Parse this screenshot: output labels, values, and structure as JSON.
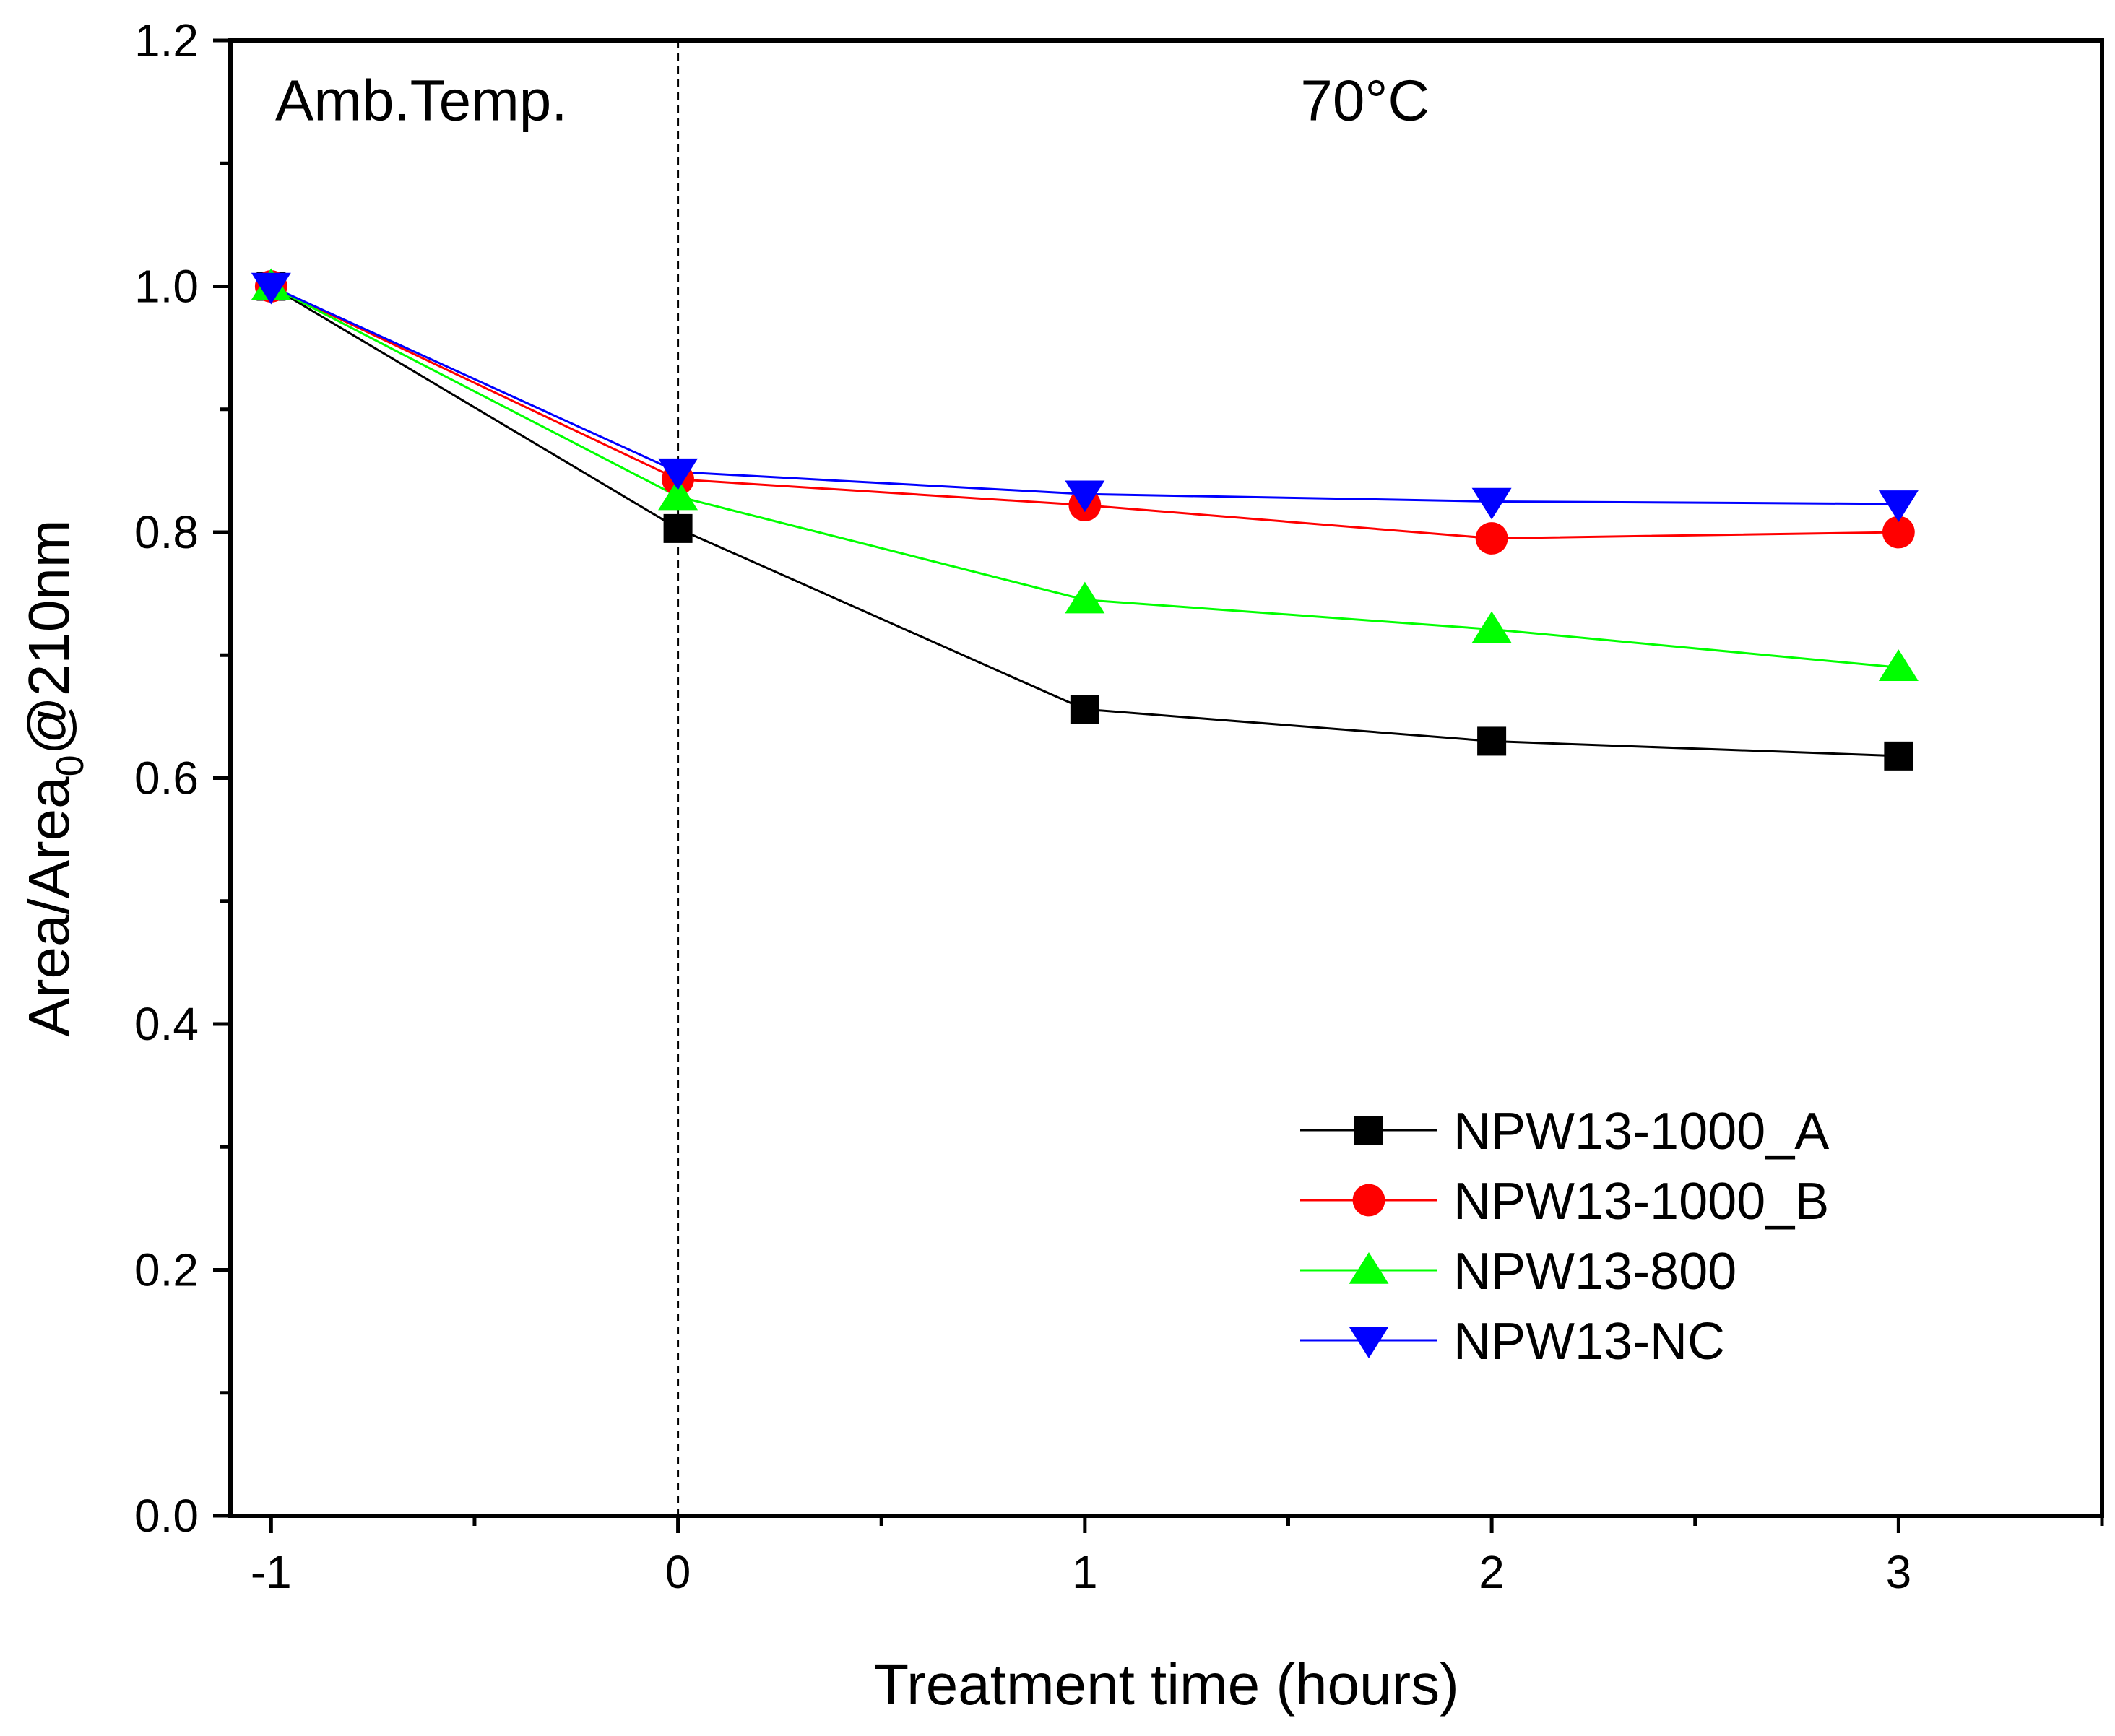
{
  "chart_data": {
    "type": "line",
    "title": "",
    "xlabel": "Treatment time (hours)",
    "ylabel": {
      "main": "Area/Area",
      "subscript": "0",
      "suffix": "@210nm"
    },
    "xlim": [
      -1.1,
      3.5
    ],
    "ylim": [
      0.0,
      1.2
    ],
    "x_ticks": [
      -1,
      0,
      1,
      2,
      3
    ],
    "x_tick_labels": [
      "-1",
      "0",
      "1",
      "2",
      "3"
    ],
    "x_minor_ticks": [
      -0.5,
      0.5,
      1.5,
      2.5,
      3.5
    ],
    "y_ticks": [
      0.0,
      0.2,
      0.4,
      0.6,
      0.8,
      1.0,
      1.2
    ],
    "y_tick_labels": [
      "0.0",
      "0.2",
      "0.4",
      "0.6",
      "0.8",
      "1.0",
      "1.2"
    ],
    "y_minor_ticks": [
      0.1,
      0.3,
      0.5,
      0.7,
      0.9,
      1.1
    ],
    "grid": false,
    "legend_position": "bottom-right",
    "divider_x": 0,
    "annotations": [
      {
        "id": "ambient",
        "text": "Amb.Temp.",
        "x": -0.99,
        "y": 1.135
      },
      {
        "id": "heat",
        "text": "70°C",
        "x": 1.53,
        "y": 1.135
      }
    ],
    "x": [
      -1,
      0,
      1,
      2,
      3
    ],
    "series": [
      {
        "name": "NPW13-1000_A",
        "marker": "square",
        "color": "#000000",
        "values": [
          1.0,
          0.803,
          0.656,
          0.63,
          0.618
        ]
      },
      {
        "name": "NPW13-1000_B",
        "marker": "circle",
        "color": "#ff0000",
        "values": [
          1.0,
          0.843,
          0.822,
          0.795,
          0.8
        ]
      },
      {
        "name": "NPW13-800",
        "marker": "triangle-up",
        "color": "#00ff00",
        "values": [
          1.0,
          0.829,
          0.745,
          0.721,
          0.69
        ]
      },
      {
        "name": "NPW13-NC",
        "marker": "triangle-down",
        "color": "#0000ff",
        "values": [
          1.0,
          0.849,
          0.831,
          0.825,
          0.823
        ]
      }
    ]
  }
}
